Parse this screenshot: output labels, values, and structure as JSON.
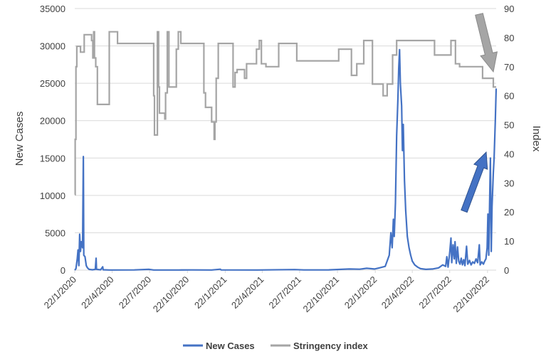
{
  "chart_data": {
    "type": "line",
    "x_start": "2020-01-22",
    "x_end": "2022-11-12",
    "x_tick_labels": [
      "22/1/2020",
      "22/4/2020",
      "22/7/2020",
      "22/10/2020",
      "22/1/2021",
      "22/4/2021",
      "22/7/2021",
      "22/10/2021",
      "22/1/2022",
      "22/4/2022",
      "22/7/2022",
      "22/10/2022"
    ],
    "x_tick_dates": [
      "2020-01-22",
      "2020-04-22",
      "2020-07-22",
      "2020-10-22",
      "2021-01-22",
      "2021-04-22",
      "2021-07-22",
      "2021-10-22",
      "2022-01-22",
      "2022-04-22",
      "2022-07-22",
      "2022-10-22"
    ],
    "y_left": {
      "label": "New Cases",
      "min": 0,
      "max": 35000,
      "ticks": [
        0,
        5000,
        10000,
        15000,
        20000,
        25000,
        30000,
        35000
      ],
      "tick_labels": [
        "0",
        "5000",
        "10000",
        "15000",
        "20000",
        "25000",
        "30000",
        "35000"
      ]
    },
    "y_right": {
      "label": "Index",
      "min": 0,
      "max": 90,
      "ticks": [
        0,
        10,
        20,
        30,
        40,
        50,
        60,
        70,
        80,
        90
      ],
      "tick_labels": [
        "0",
        "10",
        "20",
        "30",
        "40",
        "50",
        "60",
        "70",
        "80",
        "90"
      ]
    },
    "grid": "horizontal",
    "legend_position": "bottom",
    "series": [
      {
        "name": "New Cases",
        "axis": "left",
        "color": "#4472c4",
        "points": [
          [
            "2020-01-22",
            0
          ],
          [
            "2020-01-25",
            200
          ],
          [
            "2020-01-28",
            1500
          ],
          [
            "2020-01-30",
            2700
          ],
          [
            "2020-02-01",
            600
          ],
          [
            "2020-02-03",
            4800
          ],
          [
            "2020-02-05",
            2500
          ],
          [
            "2020-02-07",
            3800
          ],
          [
            "2020-02-10",
            3000
          ],
          [
            "2020-02-12",
            15200
          ],
          [
            "2020-02-13",
            2000
          ],
          [
            "2020-02-16",
            1800
          ],
          [
            "2020-02-19",
            600
          ],
          [
            "2020-02-22",
            300
          ],
          [
            "2020-02-26",
            100
          ],
          [
            "2020-03-05",
            50
          ],
          [
            "2020-03-12",
            100
          ],
          [
            "2020-03-14",
            1600
          ],
          [
            "2020-03-15",
            100
          ],
          [
            "2020-03-25",
            50
          ],
          [
            "2020-03-30",
            450
          ],
          [
            "2020-03-31",
            50
          ],
          [
            "2020-04-15",
            20
          ],
          [
            "2020-06-15",
            30
          ],
          [
            "2020-07-20",
            100
          ],
          [
            "2020-08-01",
            20
          ],
          [
            "2020-10-01",
            20
          ],
          [
            "2020-11-01",
            30
          ],
          [
            "2020-12-20",
            20
          ],
          [
            "2021-01-10",
            120
          ],
          [
            "2021-01-12",
            30
          ],
          [
            "2021-04-10",
            20
          ],
          [
            "2021-07-10",
            80
          ],
          [
            "2021-08-01",
            30
          ],
          [
            "2021-10-01",
            40
          ],
          [
            "2021-11-20",
            150
          ],
          [
            "2021-12-15",
            120
          ],
          [
            "2022-01-01",
            250
          ],
          [
            "2022-01-20",
            150
          ],
          [
            "2022-02-01",
            300
          ],
          [
            "2022-02-15",
            500
          ],
          [
            "2022-02-25",
            2000
          ],
          [
            "2022-03-01",
            5000
          ],
          [
            "2022-03-04",
            3000
          ],
          [
            "2022-03-07",
            6800
          ],
          [
            "2022-03-09",
            4500
          ],
          [
            "2022-03-12",
            9000
          ],
          [
            "2022-03-15",
            18000
          ],
          [
            "2022-03-18",
            23000
          ],
          [
            "2022-03-20",
            27000
          ],
          [
            "2022-03-22",
            29500
          ],
          [
            "2022-03-24",
            25000
          ],
          [
            "2022-03-27",
            22000
          ],
          [
            "2022-03-29",
            16000
          ],
          [
            "2022-03-31",
            19500
          ],
          [
            "2022-04-03",
            12000
          ],
          [
            "2022-04-06",
            8000
          ],
          [
            "2022-04-10",
            4500
          ],
          [
            "2022-04-14",
            3000
          ],
          [
            "2022-04-18",
            2000
          ],
          [
            "2022-04-22",
            1200
          ],
          [
            "2022-04-28",
            700
          ],
          [
            "2022-05-05",
            400
          ],
          [
            "2022-05-12",
            200
          ],
          [
            "2022-05-25",
            100
          ],
          [
            "2022-06-10",
            150
          ],
          [
            "2022-06-25",
            300
          ],
          [
            "2022-07-05",
            700
          ],
          [
            "2022-07-12",
            500
          ],
          [
            "2022-07-15",
            1800
          ],
          [
            "2022-07-18",
            400
          ],
          [
            "2022-07-22",
            2300
          ],
          [
            "2022-07-25",
            4300
          ],
          [
            "2022-07-27",
            1000
          ],
          [
            "2022-07-30",
            3400
          ],
          [
            "2022-08-02",
            1500
          ],
          [
            "2022-08-04",
            3800
          ],
          [
            "2022-08-07",
            900
          ],
          [
            "2022-08-10",
            3100
          ],
          [
            "2022-08-13",
            1200
          ],
          [
            "2022-08-16",
            800
          ],
          [
            "2022-08-19",
            1600
          ],
          [
            "2022-08-22",
            700
          ],
          [
            "2022-08-25",
            1400
          ],
          [
            "2022-08-28",
            600
          ],
          [
            "2022-09-01",
            3200
          ],
          [
            "2022-09-04",
            800
          ],
          [
            "2022-09-08",
            1300
          ],
          [
            "2022-09-12",
            700
          ],
          [
            "2022-09-16",
            1100
          ],
          [
            "2022-09-20",
            900
          ],
          [
            "2022-09-24",
            1500
          ],
          [
            "2022-09-28",
            1000
          ],
          [
            "2022-10-02",
            3400
          ],
          [
            "2022-10-04",
            700
          ],
          [
            "2022-10-08",
            1100
          ],
          [
            "2022-10-12",
            800
          ],
          [
            "2022-10-15",
            1200
          ],
          [
            "2022-10-18",
            1500
          ],
          [
            "2022-10-21",
            3000
          ],
          [
            "2022-10-23",
            7500
          ],
          [
            "2022-10-25",
            2000
          ],
          [
            "2022-10-27",
            9000
          ],
          [
            "2022-10-29",
            15000
          ],
          [
            "2022-10-31",
            2500
          ],
          [
            "2022-11-02",
            8500
          ],
          [
            "2022-11-05",
            13000
          ],
          [
            "2022-11-07",
            15000
          ],
          [
            "2022-11-10",
            20000
          ],
          [
            "2022-11-12",
            24300
          ]
        ]
      },
      {
        "name": "Stringency index",
        "axis": "right",
        "color": "#a5a5a5",
        "steps": [
          [
            "2020-01-22",
            26
          ],
          [
            "2020-01-23",
            45
          ],
          [
            "2020-01-25",
            70
          ],
          [
            "2020-01-27",
            77
          ],
          [
            "2020-02-05",
            75
          ],
          [
            "2020-02-14",
            81
          ],
          [
            "2020-03-03",
            79
          ],
          [
            "2020-03-06",
            73
          ],
          [
            "2020-03-08",
            82
          ],
          [
            "2020-03-10",
            73
          ],
          [
            "2020-03-13",
            70
          ],
          [
            "2020-03-17",
            57
          ],
          [
            "2020-04-15",
            82
          ],
          [
            "2020-05-05",
            78
          ],
          [
            "2020-08-01",
            60
          ],
          [
            "2020-08-03",
            46.5
          ],
          [
            "2020-08-10",
            82
          ],
          [
            "2020-08-13",
            63
          ],
          [
            "2020-08-15",
            54
          ],
          [
            "2020-08-28",
            52
          ],
          [
            "2020-08-30",
            61
          ],
          [
            "2020-09-03",
            82
          ],
          [
            "2020-09-07",
            63
          ],
          [
            "2020-09-25",
            76
          ],
          [
            "2020-09-30",
            82
          ],
          [
            "2020-10-06",
            78
          ],
          [
            "2020-12-01",
            61
          ],
          [
            "2020-12-05",
            56
          ],
          [
            "2020-12-20",
            51
          ],
          [
            "2020-12-26",
            45
          ],
          [
            "2020-12-28",
            51
          ],
          [
            "2020-12-31",
            66
          ],
          [
            "2021-01-05",
            78
          ],
          [
            "2021-02-10",
            63
          ],
          [
            "2021-02-15",
            68
          ],
          [
            "2021-02-20",
            69
          ],
          [
            "2021-03-10",
            66
          ],
          [
            "2021-03-15",
            71
          ],
          [
            "2021-04-08",
            76
          ],
          [
            "2021-04-15",
            79
          ],
          [
            "2021-04-20",
            71
          ],
          [
            "2021-05-01",
            70
          ],
          [
            "2021-06-01",
            78
          ],
          [
            "2021-07-15",
            72
          ],
          [
            "2021-09-01",
            72
          ],
          [
            "2021-10-25",
            76
          ],
          [
            "2021-11-25",
            67
          ],
          [
            "2021-12-08",
            71
          ],
          [
            "2021-12-25",
            79
          ],
          [
            "2022-01-15",
            64
          ],
          [
            "2022-02-10",
            60
          ],
          [
            "2022-02-20",
            64
          ],
          [
            "2022-03-05",
            74
          ],
          [
            "2022-03-15",
            79
          ],
          [
            "2022-04-10",
            79
          ],
          [
            "2022-05-10",
            79
          ],
          [
            "2022-06-15",
            74
          ],
          [
            "2022-07-25",
            79
          ],
          [
            "2022-08-05",
            71
          ],
          [
            "2022-08-15",
            70
          ],
          [
            "2022-09-01",
            70
          ],
          [
            "2022-10-10",
            66
          ],
          [
            "2022-11-05",
            63
          ],
          [
            "2022-11-12",
            63
          ]
        ]
      }
    ],
    "annotations": [
      {
        "type": "arrow",
        "direction": "up",
        "color": "#4472c4",
        "near": "New Cases late-2022 rise"
      },
      {
        "type": "arrow",
        "direction": "down",
        "color": "#a5a5a5",
        "near": "Stringency index late-2022 decline"
      }
    ]
  }
}
